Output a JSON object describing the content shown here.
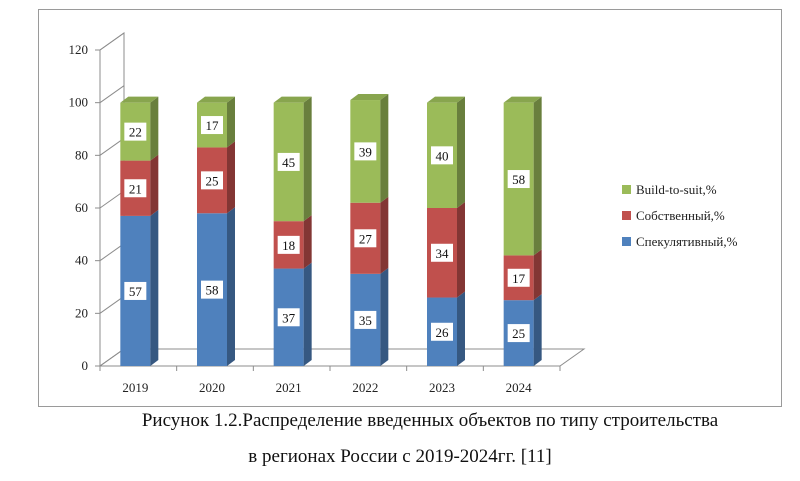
{
  "chart_data": {
    "type": "bar",
    "stacked": true,
    "three_d": true,
    "categories": [
      "2019",
      "2020",
      "2021",
      "2022",
      "2023",
      "2024"
    ],
    "series": [
      {
        "name": "Спекулятивный,%",
        "color": "#4f81bd",
        "values": [
          57,
          58,
          37,
          35,
          26,
          25
        ]
      },
      {
        "name": "Собственный,%",
        "color": "#c0504d",
        "values": [
          21,
          25,
          18,
          27,
          34,
          17
        ]
      },
      {
        "name": "Build-to-suit,%",
        "color": "#9bbb59",
        "values": [
          22,
          17,
          45,
          39,
          40,
          58
        ]
      }
    ],
    "ylim": [
      0,
      120
    ],
    "yticks": [
      "0",
      "20",
      "40",
      "60",
      "80",
      "100",
      "120"
    ],
    "grid": false,
    "legend_position": "right"
  },
  "caption": {
    "line1": "Рисунок 1.2.Распределение введенных объектов по типу строительства",
    "line2": "в регионах России с 2019-2024гг. [11]"
  }
}
